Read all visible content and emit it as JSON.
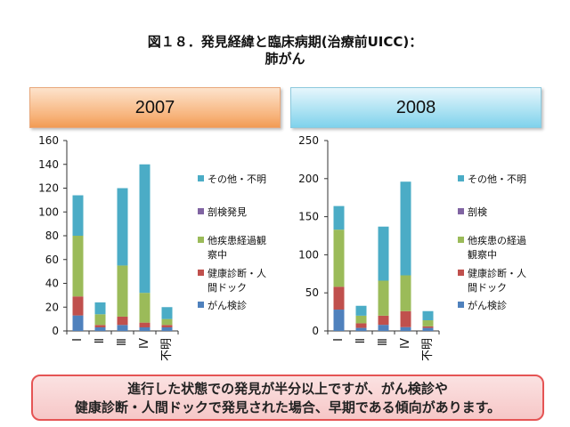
{
  "page": {
    "title_line1": "図１８．発見経緯と臨床病期(治療前UICC)：",
    "title_line2": "肺がん",
    "conclusion_line1": "進行した状態での発見が半分以上ですが、がん検診や",
    "conclusion_line2": "健康診断・人間ドックで発見された場合、早期である傾向があります。"
  },
  "colors": {
    "がん検診": "#4f81bd",
    "健康診断・人間ドック": "#c0504d",
    "他疾患経過観察中": "#9bbb59",
    "剖検": "#8064a2",
    "その他・不明": "#4bacc6"
  },
  "chart_data": [
    {
      "type": "bar",
      "stacked": true,
      "title": "2007",
      "categories": [
        "Ⅰ",
        "Ⅱ",
        "Ⅲ",
        "Ⅳ",
        "不明"
      ],
      "ylim": [
        0,
        160
      ],
      "yticks": [
        0,
        20,
        40,
        60,
        80,
        100,
        120,
        140,
        160
      ],
      "series": [
        {
          "name": "がん検診",
          "values": [
            13,
            3,
            5,
            3,
            3
          ]
        },
        {
          "name": "健康診断・人間ドック",
          "values": [
            16,
            2,
            7,
            4,
            2
          ]
        },
        {
          "name": "他疾患経過観察中",
          "values": [
            51,
            9,
            43,
            25,
            5
          ]
        },
        {
          "name": "剖検発見",
          "values": [
            0,
            0,
            0,
            0,
            0
          ]
        },
        {
          "name": "その他・不明",
          "values": [
            34,
            10,
            65,
            108,
            10
          ]
        }
      ],
      "legend": [
        "その他・不明",
        "剖検発見",
        "他疾患経過観察中",
        "健康診断・人間ドック",
        "がん検診"
      ],
      "legend_labels": [
        [
          "その他・不明"
        ],
        [
          "剖検発見"
        ],
        [
          "他疾患経過観",
          "察中"
        ],
        [
          "健康診断・人",
          "間ドック"
        ],
        [
          "がん検診"
        ]
      ]
    },
    {
      "type": "bar",
      "stacked": true,
      "title": "2008",
      "categories": [
        "Ⅰ",
        "Ⅱ",
        "Ⅲ",
        "Ⅳ",
        "不明"
      ],
      "ylim": [
        0,
        250
      ],
      "yticks": [
        0,
        50,
        100,
        150,
        200,
        250
      ],
      "series": [
        {
          "name": "がん検診",
          "values": [
            28,
            4,
            8,
            5,
            4
          ]
        },
        {
          "name": "健康診断・人間ドック",
          "values": [
            30,
            6,
            12,
            21,
            2
          ]
        },
        {
          "name": "他疾患経過観察中",
          "values": [
            75,
            10,
            46,
            47,
            8
          ]
        },
        {
          "name": "剖検",
          "values": [
            0,
            0,
            0,
            0,
            0
          ]
        },
        {
          "name": "その他・不明",
          "values": [
            31,
            13,
            71,
            123,
            12
          ]
        }
      ],
      "legend": [
        "その他・不明",
        "剖検",
        "他疾患経過観察中",
        "健康診断・人間ドック",
        "がん検診"
      ],
      "legend_labels": [
        [
          "その他・不明"
        ],
        [
          "剖検"
        ],
        [
          "他疾患の経過",
          "観察中"
        ],
        [
          "健康診断・人",
          "間ドック"
        ],
        [
          "がん検診"
        ]
      ]
    }
  ]
}
